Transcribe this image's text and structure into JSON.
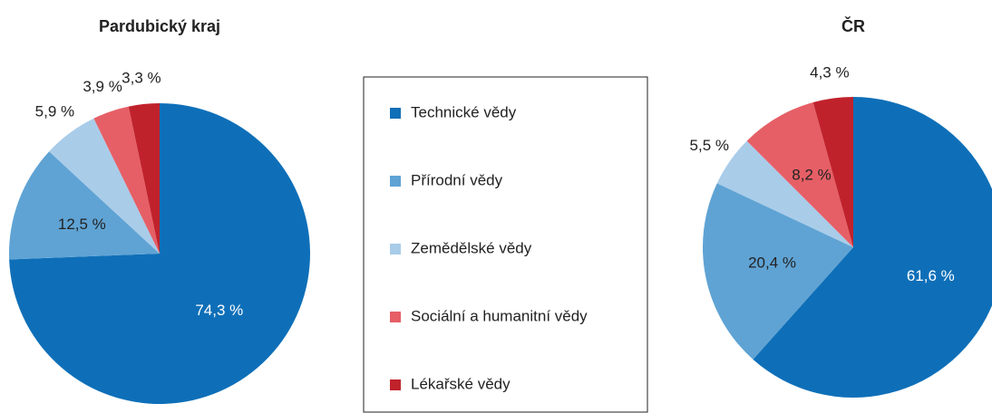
{
  "chart_data": [
    {
      "type": "pie",
      "title": "Pardubický kraj",
      "values": [
        74.3,
        12.5,
        5.9,
        3.9,
        3.3
      ],
      "value_labels": [
        "74,3 %",
        "12,5 %",
        "5,9 %",
        "3,9 %",
        "3,3 %"
      ]
    },
    {
      "type": "pie",
      "title": "ČR",
      "values": [
        61.6,
        20.4,
        5.5,
        8.2,
        4.3
      ],
      "value_labels": [
        "61,6 %",
        "20,4 %",
        "5,5 %",
        "8,2 %",
        "4,3 %"
      ]
    }
  ],
  "legend": {
    "categories": [
      "Technické vědy",
      "Přírodní vědy",
      "Zemědělské vědy",
      "Sociální a humanitní vědy",
      "Lékařské vědy"
    ],
    "colors": [
      "#0e6fb8",
      "#5fa3d4",
      "#a9cce9",
      "#e65f66",
      "#c0222c"
    ]
  }
}
